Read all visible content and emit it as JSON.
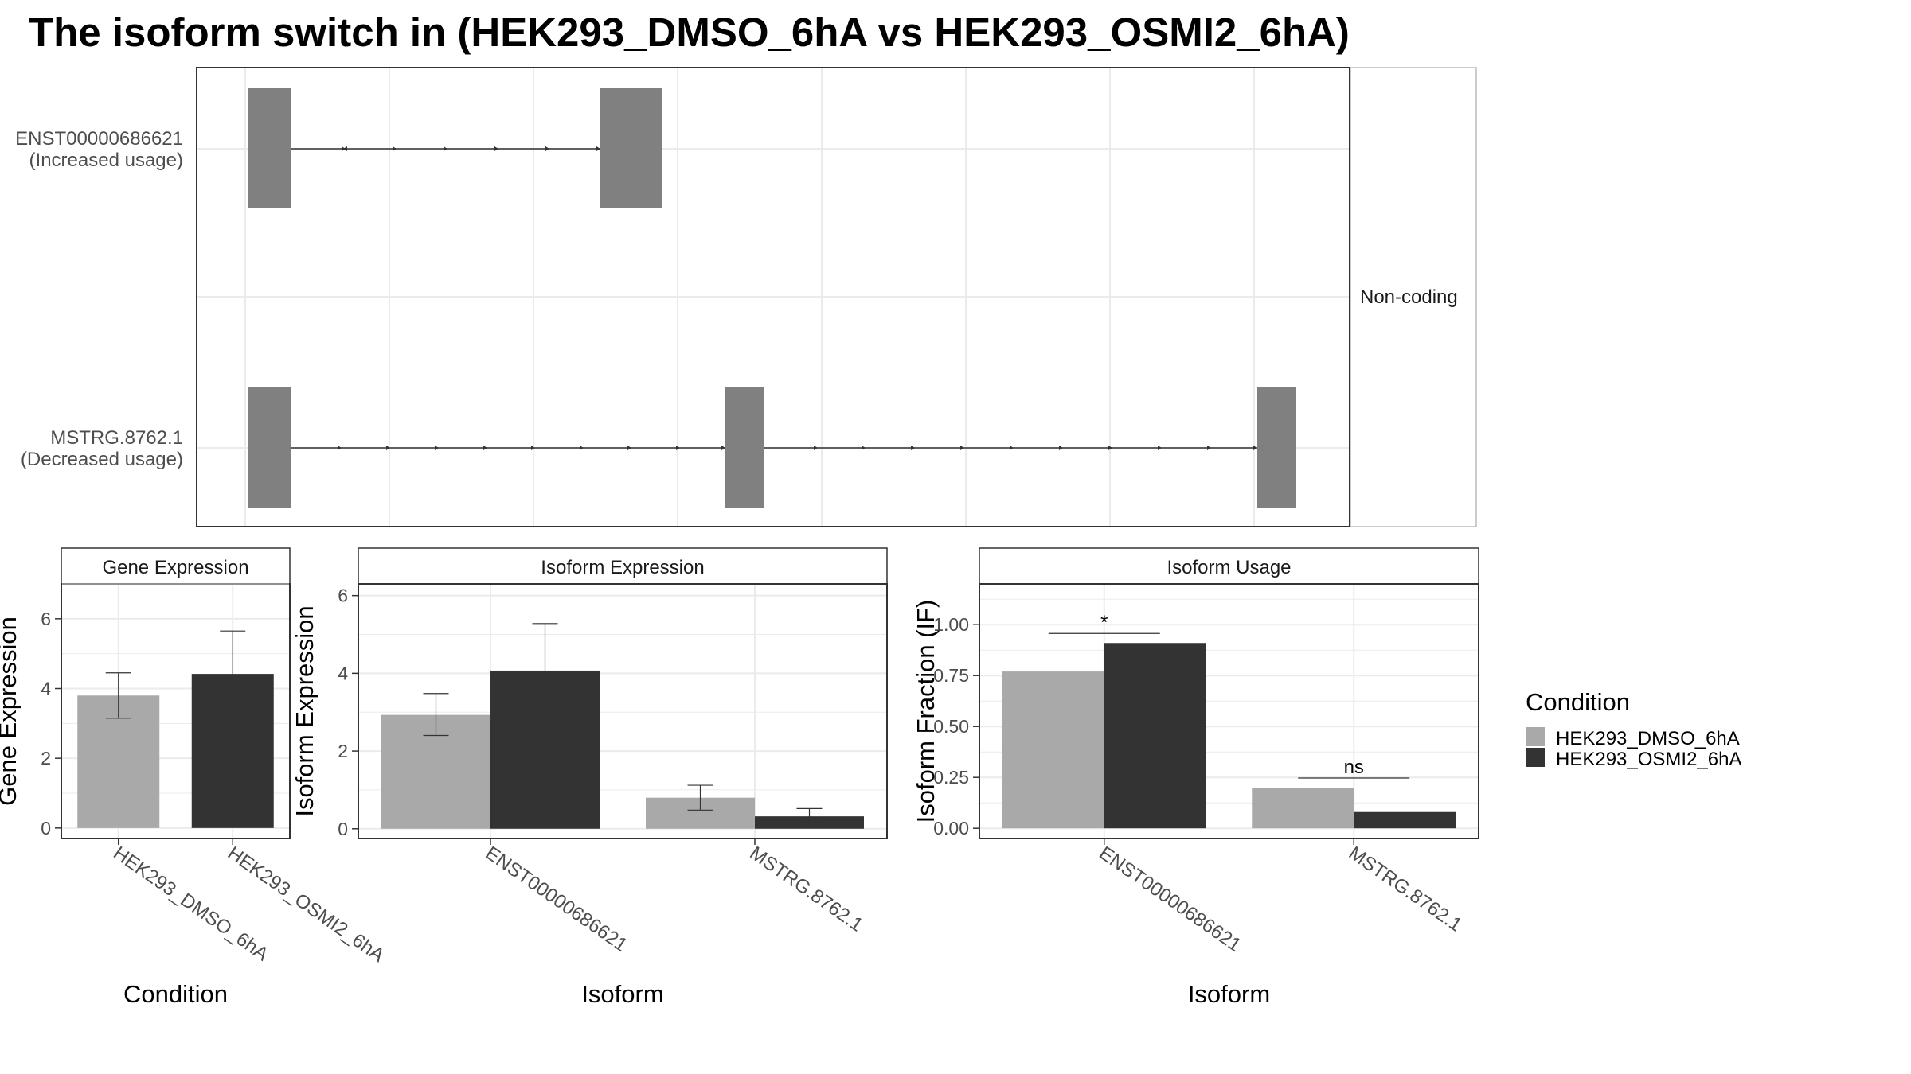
{
  "title": "The isoform switch in  (HEK293_DMSO_6hA vs HEK293_OSMI2_6hA)",
  "structure": {
    "strip_label": "Non-coding",
    "transcripts": [
      {
        "name": "ENST00000686621",
        "usage": "(Increased usage)"
      },
      {
        "name": "MSTRG.8762.1",
        "usage": "(Decreased usage)"
      }
    ]
  },
  "legend": {
    "title": "Condition",
    "entries": [
      {
        "label": "HEK293_DMSO_6hA",
        "color": "#a9a9a9"
      },
      {
        "label": "HEK293_OSMI2_6hA",
        "color": "#333333"
      }
    ]
  },
  "chart_data": [
    {
      "type": "bar",
      "title": "Gene Expression",
      "xlabel": "Condition",
      "ylabel": "Gene Expression",
      "ylim": [
        -0.3,
        7.0
      ],
      "yticks": [
        "0",
        "2",
        "4",
        "6"
      ],
      "categories": [
        "HEK293_DMSO_6hA",
        "HEK293_OSMI2_6hA"
      ],
      "values": [
        3.8,
        4.42
      ],
      "errors": [
        [
          3.15,
          4.45
        ],
        [
          3.2,
          5.65
        ]
      ],
      "grid": true
    },
    {
      "type": "bar",
      "title": "Isoform Expression",
      "xlabel": "Isoform",
      "ylabel": "Isoform Expression",
      "ylim": [
        -0.25,
        6.3
      ],
      "yticks": [
        "0",
        "2",
        "4",
        "6"
      ],
      "categories": [
        "ENST00000686621",
        "MSTRG.8762.1"
      ],
      "series": [
        {
          "name": "HEK293_DMSO_6hA",
          "values": [
            2.93,
            0.8
          ],
          "errors": [
            [
              2.4,
              3.48
            ],
            [
              0.48,
              1.12
            ]
          ]
        },
        {
          "name": "HEK293_OSMI2_6hA",
          "values": [
            4.07,
            0.32
          ],
          "errors": [
            [
              2.9,
              5.28
            ],
            [
              0.15,
              0.52
            ]
          ]
        }
      ],
      "grid": true
    },
    {
      "type": "bar",
      "title": "Isoform Usage",
      "xlabel": "Isoform",
      "ylabel": "Isoform Fraction (IF)",
      "ylim": [
        -0.05,
        1.2
      ],
      "yticks": [
        "0.00",
        "0.25",
        "0.50",
        "0.75",
        "1.00"
      ],
      "categories": [
        "ENST00000686621",
        "MSTRG.8762.1"
      ],
      "series": [
        {
          "name": "HEK293_DMSO_6hA",
          "values": [
            0.77,
            0.2
          ]
        },
        {
          "name": "HEK293_OSMI2_6hA",
          "values": [
            0.91,
            0.08
          ]
        }
      ],
      "significance": [
        "*",
        "ns"
      ],
      "grid": true
    }
  ]
}
